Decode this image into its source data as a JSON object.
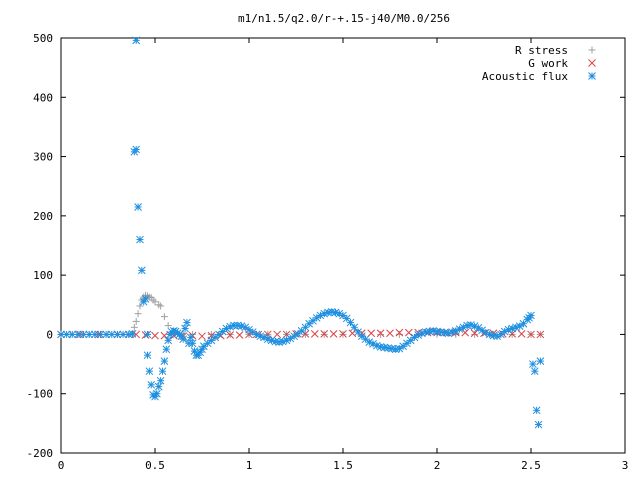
{
  "chart_data": {
    "type": "scatter",
    "title": "m1/n1.5/q2.0/r-+.15-j40/M0.0/256",
    "xlabel": "",
    "ylabel": "",
    "xlim": [
      0,
      3
    ],
    "ylim": [
      -200,
      500
    ],
    "xticks": [
      {
        "v": 0,
        "label": "0"
      },
      {
        "v": 0.5,
        "label": "0.5"
      },
      {
        "v": 1,
        "label": "1"
      },
      {
        "v": 1.5,
        "label": "1.5"
      },
      {
        "v": 2,
        "label": "2"
      },
      {
        "v": 2.5,
        "label": "2.5"
      },
      {
        "v": 3,
        "label": "3"
      }
    ],
    "yticks": [
      {
        "v": -200,
        "label": "-200"
      },
      {
        "v": -100,
        "label": "-100"
      },
      {
        "v": 0,
        "label": "0"
      },
      {
        "v": 100,
        "label": "100"
      },
      {
        "v": 200,
        "label": "200"
      },
      {
        "v": 300,
        "label": "300"
      },
      {
        "v": 400,
        "label": "400"
      },
      {
        "v": 500,
        "label": "500"
      }
    ],
    "grid": false,
    "legend_position": "top-right",
    "series": [
      {
        "name": "R stress",
        "marker": "plus",
        "color": "#a0a0a0",
        "points": [
          [
            0.0,
            0
          ],
          [
            0.05,
            0
          ],
          [
            0.1,
            0
          ],
          [
            0.15,
            0
          ],
          [
            0.2,
            0
          ],
          [
            0.25,
            0
          ],
          [
            0.3,
            0
          ],
          [
            0.35,
            0
          ],
          [
            0.38,
            0
          ],
          [
            0.39,
            12
          ],
          [
            0.4,
            22
          ],
          [
            0.41,
            35
          ],
          [
            0.42,
            48
          ],
          [
            0.43,
            58
          ],
          [
            0.44,
            63
          ],
          [
            0.45,
            66
          ],
          [
            0.46,
            65
          ],
          [
            0.47,
            63
          ],
          [
            0.48,
            62
          ],
          [
            0.49,
            58
          ],
          [
            0.5,
            55
          ],
          [
            0.52,
            50
          ],
          [
            0.53,
            48
          ],
          [
            0.55,
            30
          ],
          [
            0.57,
            15
          ],
          [
            0.6,
            5
          ],
          [
            0.65,
            2
          ],
          [
            0.7,
            0
          ],
          [
            0.8,
            0
          ],
          [
            0.9,
            0
          ],
          [
            1.0,
            0
          ],
          [
            1.1,
            0
          ],
          [
            1.2,
            0
          ],
          [
            1.3,
            0
          ],
          [
            1.4,
            0
          ],
          [
            1.5,
            0
          ],
          [
            1.6,
            0
          ],
          [
            1.7,
            0
          ],
          [
            1.8,
            0
          ],
          [
            1.9,
            0
          ],
          [
            2.0,
            0
          ],
          [
            2.1,
            0
          ],
          [
            2.2,
            0
          ],
          [
            2.3,
            0
          ],
          [
            2.4,
            0
          ],
          [
            2.5,
            0
          ],
          [
            2.55,
            0
          ]
        ]
      },
      {
        "name": "G work",
        "marker": "cross",
        "color": "#e04040",
        "points": [
          [
            0.0,
            0
          ],
          [
            0.1,
            0
          ],
          [
            0.2,
            0
          ],
          [
            0.3,
            0
          ],
          [
            0.4,
            0
          ],
          [
            0.45,
            -1
          ],
          [
            0.5,
            -2
          ],
          [
            0.55,
            -2
          ],
          [
            0.6,
            -2
          ],
          [
            0.65,
            -3
          ],
          [
            0.7,
            -2
          ],
          [
            0.75,
            -3
          ],
          [
            0.8,
            -2
          ],
          [
            0.85,
            -2
          ],
          [
            0.9,
            -1
          ],
          [
            0.95,
            -1
          ],
          [
            1.0,
            0
          ],
          [
            1.05,
            0
          ],
          [
            1.1,
            0
          ],
          [
            1.15,
            0
          ],
          [
            1.2,
            0
          ],
          [
            1.25,
            1
          ],
          [
            1.3,
            1
          ],
          [
            1.35,
            1
          ],
          [
            1.4,
            1
          ],
          [
            1.45,
            1
          ],
          [
            1.5,
            1
          ],
          [
            1.55,
            2
          ],
          [
            1.6,
            2
          ],
          [
            1.65,
            2
          ],
          [
            1.7,
            2
          ],
          [
            1.75,
            2
          ],
          [
            1.8,
            3
          ],
          [
            1.85,
            3
          ],
          [
            1.9,
            3
          ],
          [
            1.95,
            3
          ],
          [
            2.0,
            3
          ],
          [
            2.05,
            3
          ],
          [
            2.1,
            3
          ],
          [
            2.15,
            3
          ],
          [
            2.2,
            2
          ],
          [
            2.25,
            2
          ],
          [
            2.3,
            2
          ],
          [
            2.35,
            1
          ],
          [
            2.4,
            1
          ],
          [
            2.45,
            1
          ],
          [
            2.5,
            0
          ],
          [
            2.55,
            0
          ]
        ]
      },
      {
        "name": "Acoustic flux",
        "marker": "star",
        "color": "#1e8fe0",
        "points": [
          [
            0.0,
            0
          ],
          [
            0.03,
            0
          ],
          [
            0.06,
            0
          ],
          [
            0.09,
            0
          ],
          [
            0.12,
            0
          ],
          [
            0.15,
            0
          ],
          [
            0.18,
            0
          ],
          [
            0.21,
            0
          ],
          [
            0.24,
            0
          ],
          [
            0.27,
            0
          ],
          [
            0.3,
            0
          ],
          [
            0.33,
            0
          ],
          [
            0.36,
            0
          ],
          [
            0.38,
            1
          ],
          [
            0.39,
            308
          ],
          [
            0.4,
            312
          ],
          [
            0.4,
            496
          ],
          [
            0.41,
            215
          ],
          [
            0.42,
            160
          ],
          [
            0.43,
            108
          ],
          [
            0.44,
            55
          ],
          [
            0.45,
            60
          ],
          [
            0.46,
            0
          ],
          [
            0.46,
            -35
          ],
          [
            0.47,
            -62
          ],
          [
            0.48,
            -85
          ],
          [
            0.49,
            -102
          ],
          [
            0.5,
            -105
          ],
          [
            0.51,
            -100
          ],
          [
            0.52,
            -88
          ],
          [
            0.53,
            -78
          ],
          [
            0.54,
            -62
          ],
          [
            0.55,
            -45
          ],
          [
            0.56,
            -25
          ],
          [
            0.57,
            -10
          ],
          [
            0.58,
            0
          ],
          [
            0.59,
            4
          ],
          [
            0.6,
            6
          ],
          [
            0.61,
            5
          ],
          [
            0.62,
            2
          ],
          [
            0.63,
            0
          ],
          [
            0.64,
            -3
          ],
          [
            0.65,
            -8
          ],
          [
            0.66,
            10
          ],
          [
            0.67,
            20
          ],
          [
            0.68,
            -15
          ],
          [
            0.69,
            -5
          ],
          [
            0.7,
            -15
          ],
          [
            0.71,
            -28
          ],
          [
            0.72,
            -35
          ],
          [
            0.73,
            -35
          ],
          [
            0.74,
            -30
          ],
          [
            0.75,
            -25
          ],
          [
            0.76,
            -20
          ],
          [
            0.78,
            -15
          ],
          [
            0.8,
            -10
          ],
          [
            0.82,
            -5
          ],
          [
            0.84,
            0
          ],
          [
            0.86,
            5
          ],
          [
            0.88,
            10
          ],
          [
            0.9,
            13
          ],
          [
            0.92,
            15
          ],
          [
            0.94,
            15
          ],
          [
            0.96,
            14
          ],
          [
            0.98,
            12
          ],
          [
            1.0,
            8
          ],
          [
            1.02,
            4
          ],
          [
            1.04,
            0
          ],
          [
            1.06,
            -3
          ],
          [
            1.08,
            -5
          ],
          [
            1.1,
            -8
          ],
          [
            1.12,
            -10
          ],
          [
            1.14,
            -12
          ],
          [
            1.16,
            -13
          ],
          [
            1.18,
            -12
          ],
          [
            1.2,
            -10
          ],
          [
            1.22,
            -7
          ],
          [
            1.24,
            -3
          ],
          [
            1.26,
            1
          ],
          [
            1.28,
            6
          ],
          [
            1.3,
            12
          ],
          [
            1.32,
            18
          ],
          [
            1.34,
            23
          ],
          [
            1.36,
            28
          ],
          [
            1.38,
            32
          ],
          [
            1.4,
            35
          ],
          [
            1.42,
            37
          ],
          [
            1.44,
            38
          ],
          [
            1.46,
            37
          ],
          [
            1.48,
            35
          ],
          [
            1.5,
            32
          ],
          [
            1.52,
            27
          ],
          [
            1.54,
            20
          ],
          [
            1.56,
            12
          ],
          [
            1.58,
            4
          ],
          [
            1.6,
            -3
          ],
          [
            1.62,
            -8
          ],
          [
            1.64,
            -13
          ],
          [
            1.66,
            -16
          ],
          [
            1.68,
            -19
          ],
          [
            1.7,
            -21
          ],
          [
            1.72,
            -22
          ],
          [
            1.74,
            -23
          ],
          [
            1.76,
            -24
          ],
          [
            1.78,
            -25
          ],
          [
            1.8,
            -24
          ],
          [
            1.82,
            -20
          ],
          [
            1.84,
            -15
          ],
          [
            1.86,
            -10
          ],
          [
            1.88,
            -5
          ],
          [
            1.9,
            -1
          ],
          [
            1.92,
            2
          ],
          [
            1.94,
            4
          ],
          [
            1.96,
            5
          ],
          [
            1.98,
            6
          ],
          [
            2.0,
            5
          ],
          [
            2.02,
            4
          ],
          [
            2.04,
            3
          ],
          [
            2.06,
            2
          ],
          [
            2.08,
            4
          ],
          [
            2.1,
            6
          ],
          [
            2.12,
            9
          ],
          [
            2.14,
            12
          ],
          [
            2.16,
            15
          ],
          [
            2.18,
            16
          ],
          [
            2.2,
            14
          ],
          [
            2.22,
            11
          ],
          [
            2.24,
            7
          ],
          [
            2.26,
            3
          ],
          [
            2.28,
            0
          ],
          [
            2.3,
            -2
          ],
          [
            2.32,
            -3
          ],
          [
            2.34,
            0
          ],
          [
            2.36,
            5
          ],
          [
            2.38,
            8
          ],
          [
            2.4,
            10
          ],
          [
            2.42,
            12
          ],
          [
            2.44,
            14
          ],
          [
            2.46,
            18
          ],
          [
            2.48,
            25
          ],
          [
            2.49,
            28
          ],
          [
            2.5,
            32
          ],
          [
            2.51,
            -50
          ],
          [
            2.52,
            -62
          ],
          [
            2.53,
            -128
          ],
          [
            2.54,
            -152
          ],
          [
            2.55,
            -45
          ]
        ]
      }
    ]
  }
}
